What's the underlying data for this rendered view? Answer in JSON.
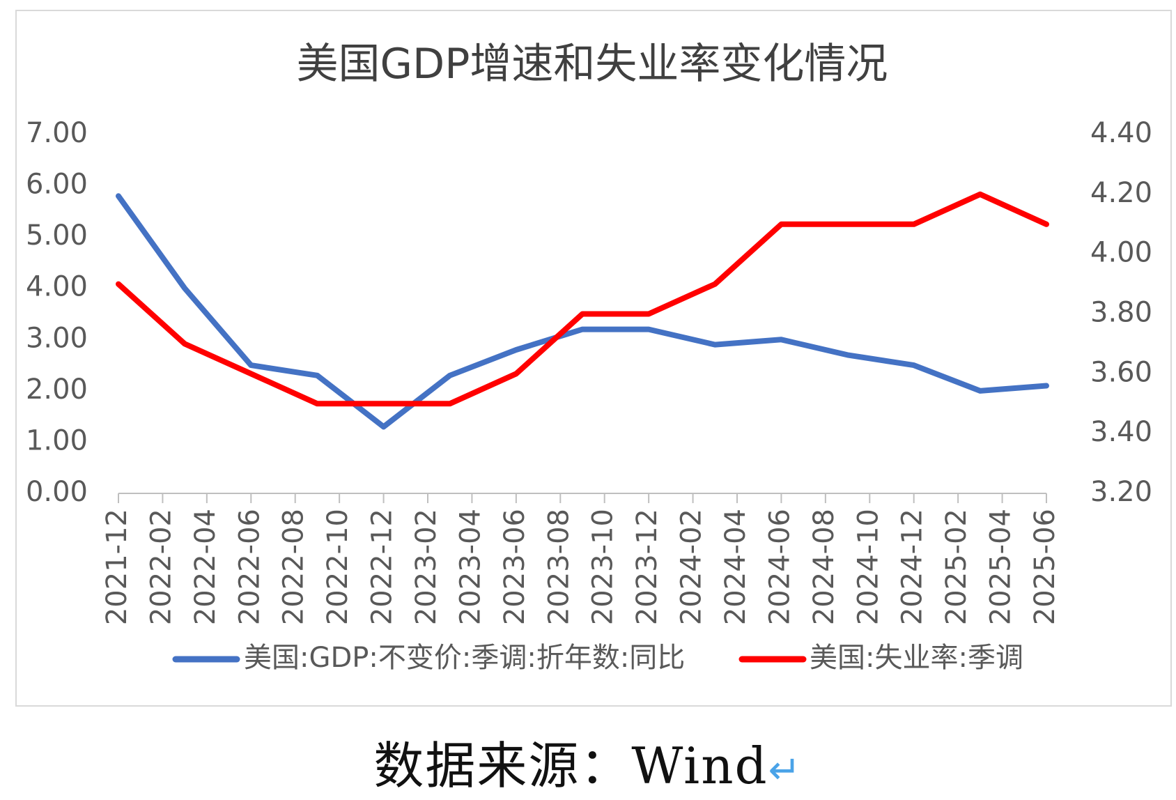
{
  "chart_data": {
    "type": "line",
    "title": "美国GDP增速和失业率变化情况",
    "x": [
      "2021-12",
      "2022-02",
      "2022-04",
      "2022-06",
      "2022-08",
      "2022-10",
      "2022-12",
      "2023-02",
      "2023-04",
      "2023-06",
      "2023-08",
      "2023-10",
      "2023-12",
      "2024-02",
      "2024-04",
      "2024-06",
      "2024-08",
      "2024-10",
      "2024-12",
      "2025-02",
      "2025-04",
      "2025-06"
    ],
    "y_left": {
      "ylim": [
        0,
        7
      ],
      "ticks": [
        "0.00",
        "1.00",
        "2.00",
        "3.00",
        "4.00",
        "5.00",
        "6.00",
        "7.00"
      ]
    },
    "y_right": {
      "ylim": [
        3.2,
        4.4
      ],
      "ticks": [
        "3.20",
        "3.40",
        "3.60",
        "3.80",
        "4.00",
        "4.20",
        "4.40"
      ]
    },
    "series": [
      {
        "name": "美国:GDP:不变价:季调:折年数:同比",
        "axis": "left",
        "color": "#4472c4",
        "points": [
          {
            "x": "2021-12",
            "y": 5.8
          },
          {
            "x": "2022-03",
            "y": 4.0
          },
          {
            "x": "2022-06",
            "y": 2.5
          },
          {
            "x": "2022-09",
            "y": 2.3
          },
          {
            "x": "2022-12",
            "y": 1.3
          },
          {
            "x": "2023-03",
            "y": 2.3
          },
          {
            "x": "2023-06",
            "y": 2.8
          },
          {
            "x": "2023-09",
            "y": 3.2
          },
          {
            "x": "2023-12",
            "y": 3.2
          },
          {
            "x": "2024-03",
            "y": 2.9
          },
          {
            "x": "2024-06",
            "y": 3.0
          },
          {
            "x": "2024-09",
            "y": 2.7
          },
          {
            "x": "2024-12",
            "y": 2.5
          },
          {
            "x": "2025-03",
            "y": 2.0
          },
          {
            "x": "2025-06",
            "y": 2.1
          }
        ]
      },
      {
        "name": "美国:失业率:季调",
        "axis": "right",
        "color": "#ff0000",
        "points": [
          {
            "x": "2021-12",
            "y": 3.9
          },
          {
            "x": "2022-03",
            "y": 3.7
          },
          {
            "x": "2022-06",
            "y": 3.6
          },
          {
            "x": "2022-09",
            "y": 3.5
          },
          {
            "x": "2022-12",
            "y": 3.5
          },
          {
            "x": "2023-03",
            "y": 3.5
          },
          {
            "x": "2023-06",
            "y": 3.6
          },
          {
            "x": "2023-09",
            "y": 3.8
          },
          {
            "x": "2023-12",
            "y": 3.8
          },
          {
            "x": "2024-03",
            "y": 3.9
          },
          {
            "x": "2024-06",
            "y": 4.1
          },
          {
            "x": "2024-09",
            "y": 4.1
          },
          {
            "x": "2024-12",
            "y": 4.1
          },
          {
            "x": "2025-03",
            "y": 4.2
          },
          {
            "x": "2025-06",
            "y": 4.1
          }
        ]
      }
    ],
    "legend": "bottom",
    "grid": false
  },
  "source": {
    "label": "数据来源：Wind",
    "return_glyph": "↵"
  },
  "colors": {
    "axis_text": "#595959",
    "axis_line": "#bfbfbf",
    "title": "#404040"
  }
}
